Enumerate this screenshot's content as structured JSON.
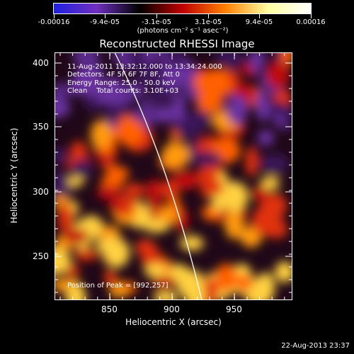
{
  "colorbar": {
    "tick_labels": [
      "-0.00016",
      "-9.4e-05",
      "-3.1e-05",
      "3.1e-05",
      "9.4e-05",
      "0.00016"
    ],
    "units": "(photons cm⁻² s⁻¹ asec⁻²)",
    "colors": [
      "#2020e0",
      "#7030c0",
      "#000000",
      "#c00000",
      "#ff8000",
      "#ffffa0",
      "#ffffff"
    ]
  },
  "title": "Reconstructed RHESSI Image",
  "info": {
    "line1": "11-Aug-2011 13:32:12.000 to 13:34:24.000",
    "line2": "Detectors: 4F 5F 6F 7F 8F, Att 0",
    "line3": "Energy Range: 25.0 - 50.0 keV",
    "line4": "Clean    Total counts: 3.10E+03"
  },
  "peak": "Position of Peak = [992,257]",
  "axes": {
    "xlabel": "Heliocentric X (arcsec)",
    "ylabel": "Heliocentric Y (arcsec)",
    "xticks": [
      "850",
      "900",
      "950"
    ],
    "yticks": [
      "400",
      "350",
      "300",
      "250"
    ]
  },
  "datestamp": "22-Aug-2013 23:37"
}
